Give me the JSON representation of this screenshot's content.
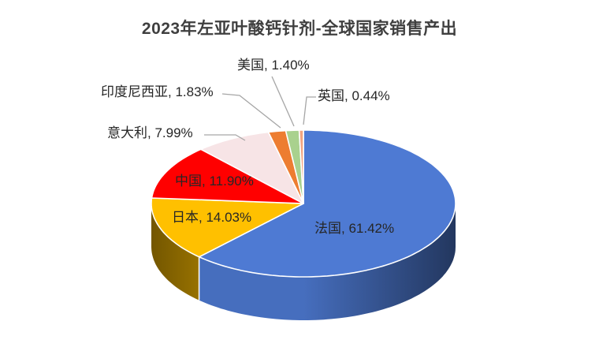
{
  "title": "2023年左亚叶酸钙针剂-全球国家销售产出",
  "chart_data": {
    "type": "pie",
    "style": "3d",
    "title": "2023年左亚叶酸钙针剂-全球国家销售产出",
    "start_angle": "12-oclock",
    "direction": "clockwise",
    "legend": "none",
    "background": "#ffffff",
    "label_line_color": "#a6a6a6",
    "slices": [
      {
        "id": "france",
        "label": "法国",
        "value": 61.42,
        "pct_text": "61.42%",
        "display_label": "法国, 61.42%",
        "color": "#4e7ad3",
        "label_placement": "inside"
      },
      {
        "id": "japan",
        "label": "日本",
        "value": 14.03,
        "pct_text": "14.03%",
        "display_label": "日本, 14.03%",
        "color": "#ffc000",
        "label_placement": "inside"
      },
      {
        "id": "china",
        "label": "中国",
        "value": 11.9,
        "pct_text": "11.90%",
        "display_label": "中国, 11.90%",
        "color": "#ff0000",
        "label_placement": "inside"
      },
      {
        "id": "italy",
        "label": "意大利",
        "value": 7.99,
        "pct_text": "7.99%",
        "display_label": "意大利, 7.99%",
        "color": "#f7e4e6",
        "label_placement": "outside"
      },
      {
        "id": "indonesia",
        "label": "印度尼西亚",
        "value": 1.83,
        "pct_text": "1.83%",
        "display_label": "印度尼西亚, 1.83%",
        "color": "#ed7d31",
        "label_placement": "outside"
      },
      {
        "id": "usa",
        "label": "美国",
        "value": 1.4,
        "pct_text": "1.40%",
        "display_label": "美国, 1.40%",
        "color": "#a9d18e",
        "label_placement": "outside"
      },
      {
        "id": "uk",
        "label": "英国",
        "value": 0.44,
        "pct_text": "0.44%",
        "display_label": "英国, 0.44%",
        "color": "#f2a47f",
        "label_placement": "outside"
      }
    ]
  }
}
